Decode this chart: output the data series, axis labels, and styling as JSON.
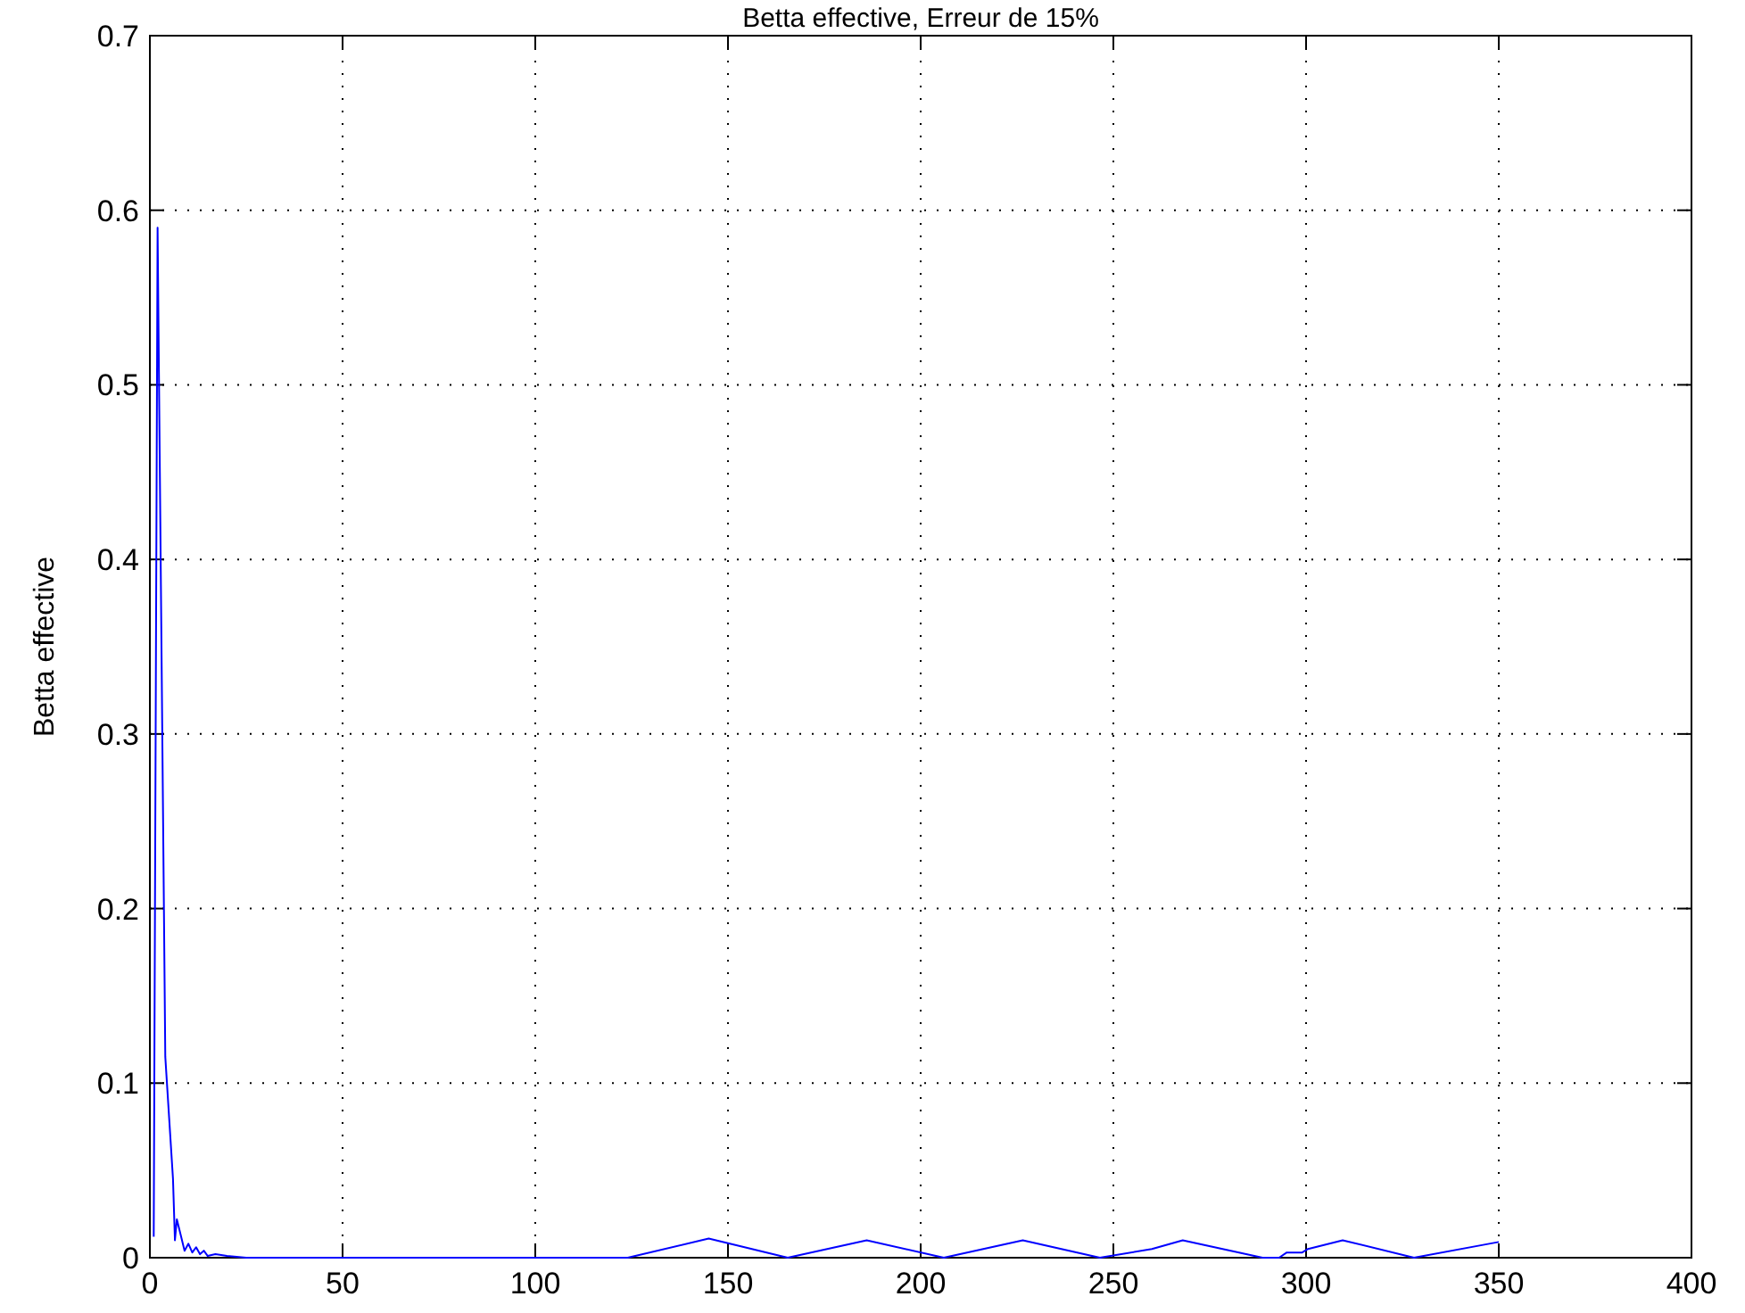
{
  "chart_data": {
    "type": "line",
    "title": "Betta effective, Erreur de 15%",
    "ylabel": "Betta effective",
    "x": [
      1,
      2,
      4,
      5,
      6,
      6.5,
      7,
      8,
      9,
      10,
      11,
      12,
      13,
      14,
      15,
      17,
      20,
      25,
      30,
      60,
      100,
      124,
      145,
      165.5,
      186,
      206,
      226.5,
      246.5,
      260,
      268,
      288.7,
      293,
      295,
      299,
      300.5,
      309.5,
      328,
      350
    ],
    "series": [
      {
        "color": "#0000ff",
        "values": [
          0.012,
          0.59,
          0.115,
          0.08,
          0.045,
          0.01,
          0.022,
          0.013,
          0.004,
          0.008,
          0.003,
          0.006,
          0.002,
          0.004,
          0.001,
          0.002,
          0.001,
          0,
          0,
          0,
          0,
          0,
          0.011,
          0,
          0.01,
          0,
          0.01,
          0,
          0.005,
          0.01,
          0,
          0,
          0.003,
          0.003,
          0.005,
          0.01,
          0,
          0.009
        ]
      }
    ],
    "xlim": [
      0,
      400
    ],
    "xticks": [
      0,
      50,
      100,
      150,
      200,
      250,
      300,
      350,
      400
    ],
    "ylim": [
      0,
      0.7
    ],
    "yticks": [
      0,
      0.1,
      0.2,
      0.3,
      0.4,
      0.5,
      0.6,
      0.7
    ],
    "grid": true,
    "line_style": "solid",
    "marker": "none"
  }
}
